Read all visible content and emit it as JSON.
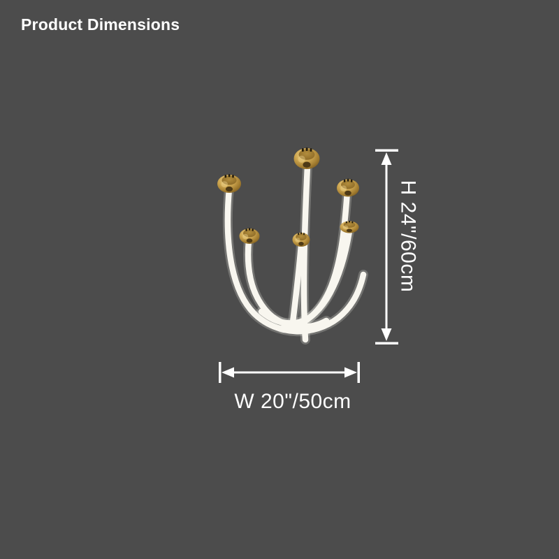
{
  "page": {
    "title": "Product Dimensions",
    "background_color": "#4c4c4c",
    "title_color": "#ffffff"
  },
  "product": {
    "type": "LED curved-tube chandelier with brass ceiling canopies",
    "canopy_count": 6,
    "tube_count": 6,
    "colors": {
      "tube_white": "#f8f6ef",
      "brass_light": "#edd38c",
      "brass_mid": "#cfa852",
      "brass_dark": "#64491a"
    }
  },
  "dimensions": {
    "height_label": "H 24\"/60cm",
    "width_label": "W 20\"/50cm",
    "marker_color": "#ffffff"
  }
}
